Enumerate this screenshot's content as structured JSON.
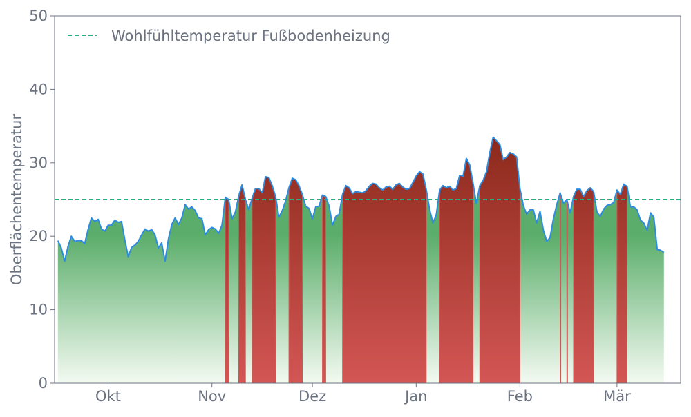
{
  "chart_data": {
    "type": "area",
    "title": "",
    "xlabel": "",
    "ylabel": "Oberflächentemperatur",
    "ylim": [
      0,
      50
    ],
    "yticks": [
      0,
      10,
      20,
      30,
      40,
      50
    ],
    "xlim": [
      "2023-09-15",
      "2024-03-20"
    ],
    "xticks": [
      {
        "date": "2023-10-01",
        "label": "Okt"
      },
      {
        "date": "2023-11-01",
        "label": "Nov"
      },
      {
        "date": "2023-12-01",
        "label": "Dez"
      },
      {
        "date": "2024-01-01",
        "label": "Jan"
      },
      {
        "date": "2024-02-01",
        "label": "Feb"
      },
      {
        "date": "2024-03-01",
        "label": "Mär"
      }
    ],
    "grid": false,
    "legend_position": "top-left",
    "threshold": {
      "name": "Wohlfühltemperatur Fußbodenheizung",
      "value": 25,
      "color": "#22b07d"
    },
    "colors": {
      "line": "#2e8ce0",
      "below_top": "#5aad6a",
      "below_bottom": "#f4faf2",
      "above_top": "#8c2a1c",
      "above_bottom": "#d35654",
      "axis": "#6b7280",
      "text": "#6b7280"
    },
    "series": [
      {
        "start_date": "2023-09-16",
        "step_days": 1,
        "values": [
          19.4,
          18.4,
          16.6,
          18.6,
          20.0,
          19.3,
          19.4,
          19.4,
          19.0,
          20.9,
          22.5,
          22.0,
          22.3,
          21.0,
          20.7,
          21.5,
          21.5,
          22.2,
          21.9,
          22.0,
          19.5,
          17.2,
          18.5,
          18.8,
          19.3,
          20.2,
          21.0,
          20.7,
          20.9,
          20.2,
          18.4,
          19.1,
          16.6,
          19.6,
          21.6,
          22.5,
          21.6,
          22.5,
          24.3,
          23.7,
          24.0,
          23.5,
          22.5,
          22.4,
          20.2,
          20.9,
          21.2,
          21.0,
          20.4,
          21.5,
          25.3,
          25.0,
          22.4,
          23.3,
          25.5,
          27.0,
          25.0,
          23.6,
          25.2,
          26.5,
          26.5,
          25.9,
          28.1,
          28.0,
          26.9,
          25.4,
          22.6,
          23.5,
          24.8,
          26.6,
          27.9,
          27.7,
          26.9,
          25.7,
          24.1,
          23.8,
          22.4,
          24.0,
          24.1,
          25.6,
          25.4,
          24.1,
          21.5,
          22.7,
          23.0,
          25.7,
          26.9,
          26.6,
          25.8,
          26.1,
          26.0,
          25.9,
          26.2,
          26.8,
          27.2,
          27.1,
          26.6,
          26.3,
          26.7,
          26.8,
          26.4,
          27.0,
          27.2,
          26.7,
          26.4,
          26.5,
          27.3,
          28.2,
          28.8,
          28.5,
          26.4,
          23.7,
          21.8,
          22.9,
          26.3,
          26.9,
          26.6,
          26.8,
          26.3,
          26.5,
          28.3,
          28.2,
          30.6,
          29.7,
          27.2,
          24.4,
          26.9,
          27.6,
          28.8,
          31.4,
          33.5,
          33.0,
          32.5,
          30.4,
          30.8,
          31.4,
          31.2,
          30.8,
          26.5,
          24.2,
          23.0,
          23.6,
          23.6,
          21.8,
          23.4,
          20.8,
          19.3,
          19.8,
          22.4,
          24.3,
          25.9,
          24.5,
          25.0,
          23.2,
          25.4,
          26.4,
          26.4,
          25.4,
          26.2,
          26.6,
          26.1,
          23.3,
          22.7,
          23.7,
          24.2,
          24.3,
          24.6,
          26.3,
          25.7,
          27.1,
          26.8,
          24.0,
          24.0,
          23.6,
          22.2,
          21.8,
          20.8,
          23.2,
          22.6,
          18.2,
          18.1,
          17.8
        ]
      }
    ]
  },
  "legend": {
    "items": [
      {
        "label": "Wohlfühltemperatur Fußbodenheizung"
      }
    ]
  }
}
